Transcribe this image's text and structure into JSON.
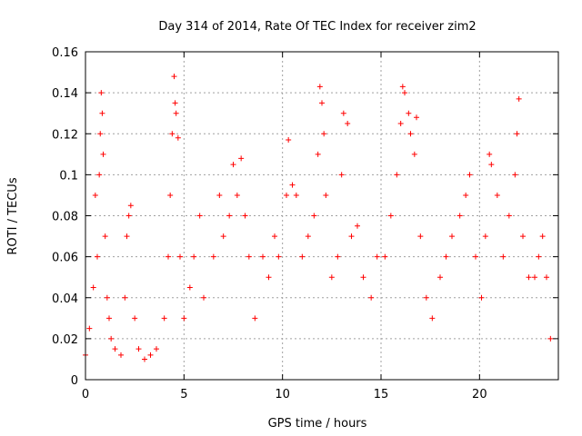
{
  "chart_data": {
    "type": "scatter",
    "title": "Day 314 of 2014, Rate Of TEC Index for receiver zim2",
    "xlabel": "GPS time / hours",
    "ylabel": "ROTI / TECUs",
    "xlim": [
      0,
      24
    ],
    "ylim": [
      0,
      0.16
    ],
    "x_ticks": [
      "0",
      "5",
      "10",
      "15",
      "20"
    ],
    "x_tick_values": [
      0,
      5,
      10,
      15,
      20
    ],
    "y_ticks": [
      "0",
      "0.02",
      "0.04",
      "0.06",
      "0.08",
      "0.1",
      "0.12",
      "0.14",
      "0.16"
    ],
    "y_tick_values": [
      0,
      0.02,
      0.04,
      0.06,
      0.08,
      0.1,
      0.12,
      0.14,
      0.16
    ],
    "grid": true,
    "marker": "plus",
    "series": [
      {
        "color": "#ff0000",
        "points": [
          [
            0.0,
            0.012
          ],
          [
            0.2,
            0.025
          ],
          [
            0.4,
            0.045
          ],
          [
            0.5,
            0.09
          ],
          [
            0.6,
            0.06
          ],
          [
            0.7,
            0.1
          ],
          [
            0.75,
            0.12
          ],
          [
            0.8,
            0.14
          ],
          [
            0.85,
            0.13
          ],
          [
            0.9,
            0.11
          ],
          [
            1.0,
            0.07
          ],
          [
            1.1,
            0.04
          ],
          [
            1.2,
            0.03
          ],
          [
            1.3,
            0.02
          ],
          [
            1.5,
            0.015
          ],
          [
            1.8,
            0.012
          ],
          [
            2.0,
            0.04
          ],
          [
            2.1,
            0.07
          ],
          [
            2.2,
            0.08
          ],
          [
            2.3,
            0.085
          ],
          [
            2.5,
            0.03
          ],
          [
            2.7,
            0.015
          ],
          [
            3.0,
            0.01
          ],
          [
            3.3,
            0.012
          ],
          [
            3.6,
            0.015
          ],
          [
            4.0,
            0.03
          ],
          [
            4.2,
            0.06
          ],
          [
            4.3,
            0.09
          ],
          [
            4.4,
            0.12
          ],
          [
            4.5,
            0.148
          ],
          [
            4.55,
            0.135
          ],
          [
            4.6,
            0.13
          ],
          [
            4.7,
            0.118
          ],
          [
            4.8,
            0.06
          ],
          [
            5.0,
            0.03
          ],
          [
            5.3,
            0.045
          ],
          [
            5.5,
            0.06
          ],
          [
            5.8,
            0.08
          ],
          [
            6.0,
            0.04
          ],
          [
            6.5,
            0.06
          ],
          [
            6.8,
            0.09
          ],
          [
            7.0,
            0.07
          ],
          [
            7.3,
            0.08
          ],
          [
            7.5,
            0.105
          ],
          [
            7.7,
            0.09
          ],
          [
            7.9,
            0.108
          ],
          [
            8.1,
            0.08
          ],
          [
            8.3,
            0.06
          ],
          [
            8.6,
            0.03
          ],
          [
            9.0,
            0.06
          ],
          [
            9.3,
            0.05
          ],
          [
            9.6,
            0.07
          ],
          [
            9.8,
            0.06
          ],
          [
            10.2,
            0.09
          ],
          [
            10.3,
            0.117
          ],
          [
            10.5,
            0.095
          ],
          [
            10.7,
            0.09
          ],
          [
            11.0,
            0.06
          ],
          [
            11.3,
            0.07
          ],
          [
            11.6,
            0.08
          ],
          [
            11.8,
            0.11
          ],
          [
            11.9,
            0.143
          ],
          [
            12.0,
            0.135
          ],
          [
            12.1,
            0.12
          ],
          [
            12.2,
            0.09
          ],
          [
            12.5,
            0.05
          ],
          [
            12.8,
            0.06
          ],
          [
            13.0,
            0.1
          ],
          [
            13.1,
            0.13
          ],
          [
            13.3,
            0.125
          ],
          [
            13.5,
            0.07
          ],
          [
            13.8,
            0.075
          ],
          [
            14.1,
            0.05
          ],
          [
            14.5,
            0.04
          ],
          [
            14.8,
            0.06
          ],
          [
            15.2,
            0.06
          ],
          [
            15.5,
            0.08
          ],
          [
            15.8,
            0.1
          ],
          [
            16.0,
            0.125
          ],
          [
            16.1,
            0.143
          ],
          [
            16.2,
            0.14
          ],
          [
            16.4,
            0.13
          ],
          [
            16.5,
            0.12
          ],
          [
            16.7,
            0.11
          ],
          [
            16.8,
            0.128
          ],
          [
            17.0,
            0.07
          ],
          [
            17.3,
            0.04
          ],
          [
            17.6,
            0.03
          ],
          [
            18.0,
            0.05
          ],
          [
            18.3,
            0.06
          ],
          [
            18.6,
            0.07
          ],
          [
            19.0,
            0.08
          ],
          [
            19.3,
            0.09
          ],
          [
            19.5,
            0.1
          ],
          [
            19.8,
            0.06
          ],
          [
            20.1,
            0.04
          ],
          [
            20.3,
            0.07
          ],
          [
            20.5,
            0.11
          ],
          [
            20.6,
            0.105
          ],
          [
            20.9,
            0.09
          ],
          [
            21.2,
            0.06
          ],
          [
            21.5,
            0.08
          ],
          [
            21.8,
            0.1
          ],
          [
            21.9,
            0.12
          ],
          [
            22.0,
            0.137
          ],
          [
            22.2,
            0.07
          ],
          [
            22.5,
            0.05
          ],
          [
            22.8,
            0.05
          ],
          [
            23.0,
            0.06
          ],
          [
            23.2,
            0.07
          ],
          [
            23.4,
            0.05
          ],
          [
            23.6,
            0.02
          ]
        ]
      }
    ]
  }
}
